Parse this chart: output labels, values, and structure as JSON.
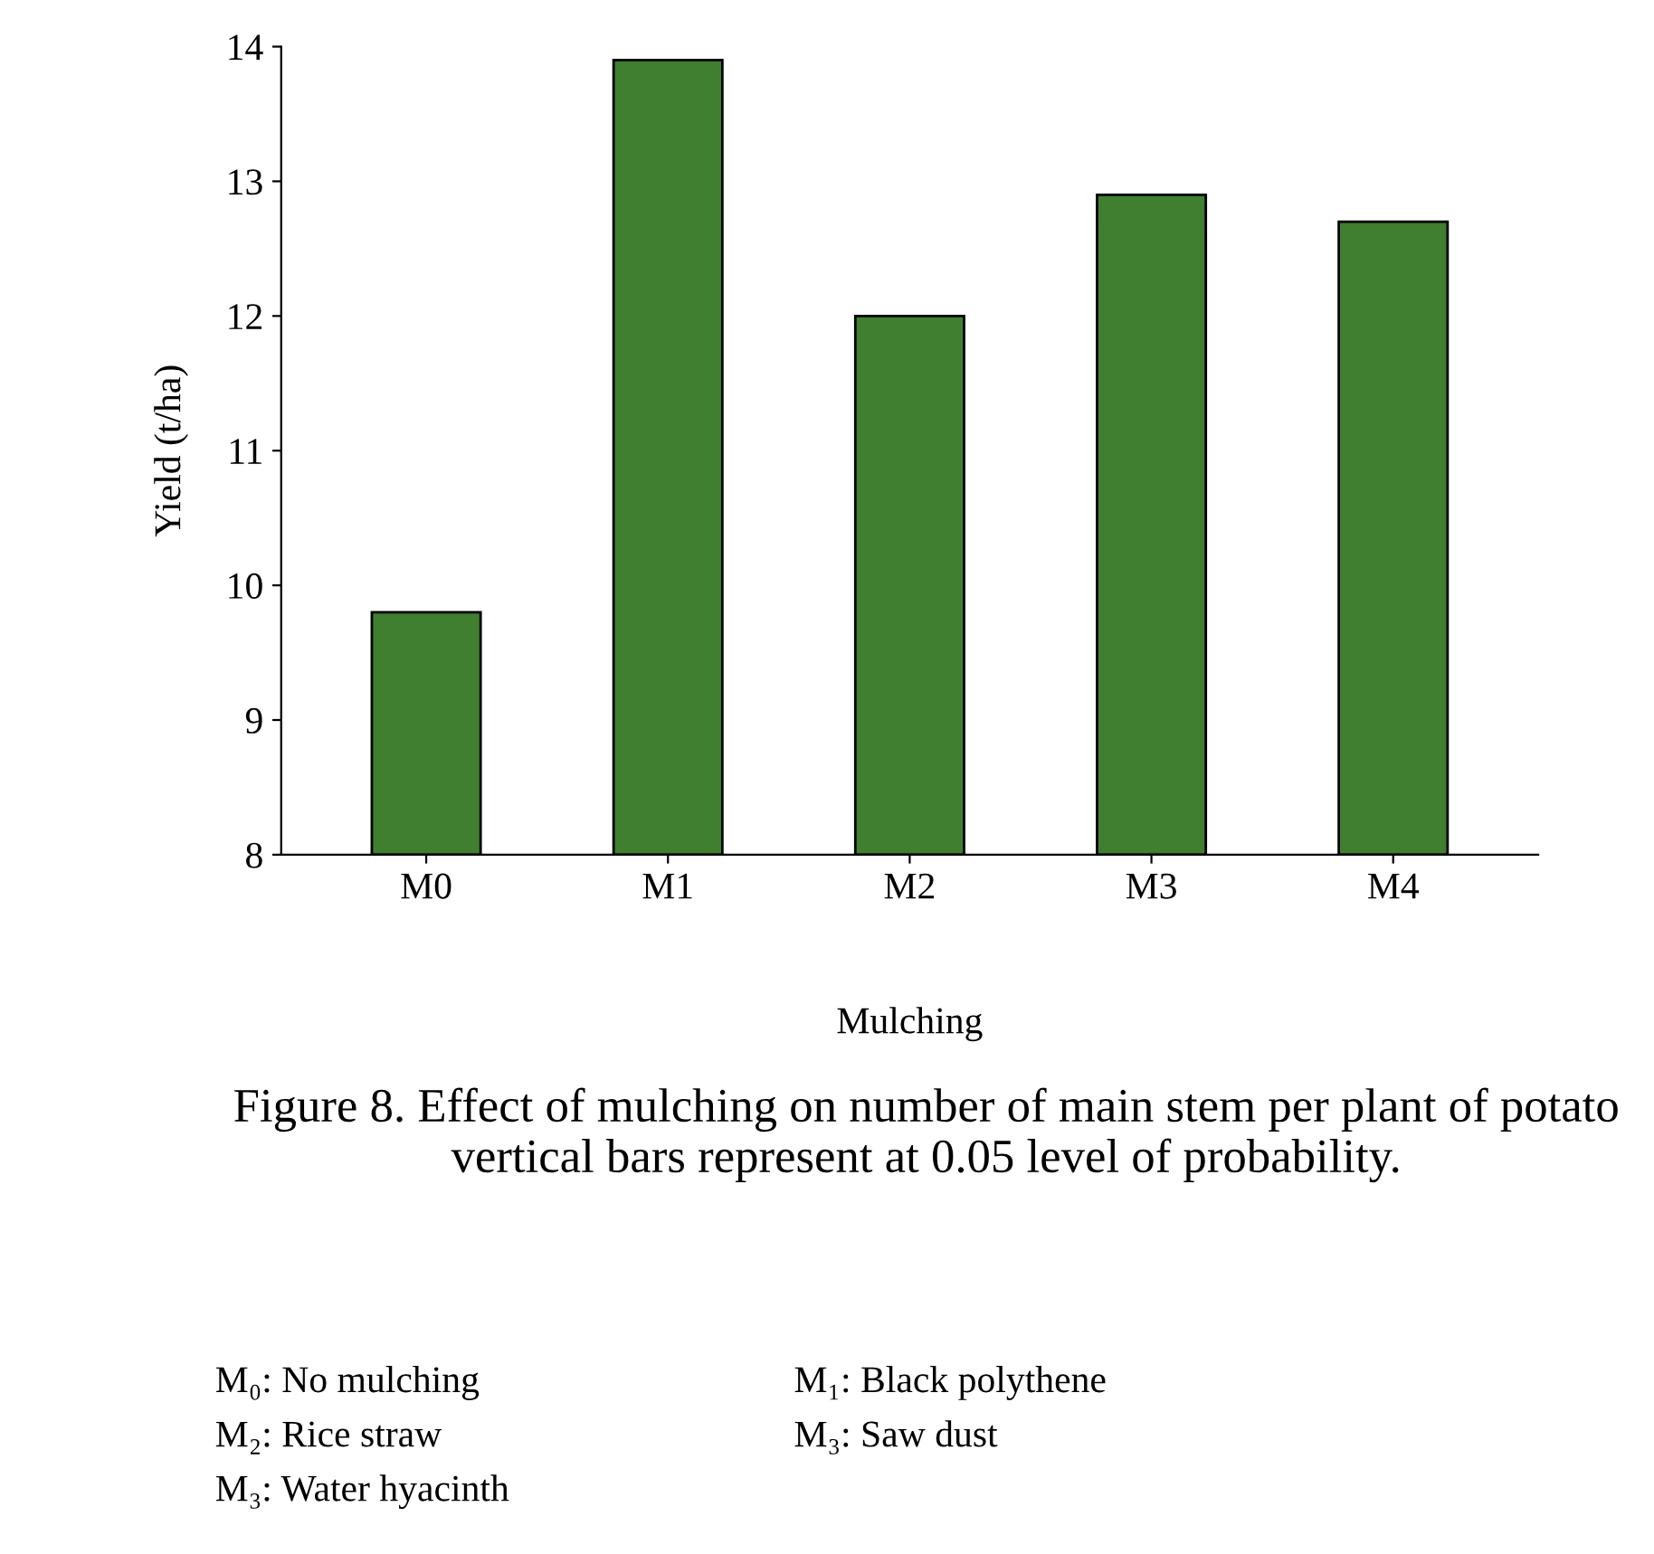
{
  "chart_data": {
    "type": "bar",
    "xlabel": "Mulching",
    "ylabel": "Yield (t/ha)",
    "categories": [
      "M0",
      "M1",
      "M2",
      "M3",
      "M4"
    ],
    "values": [
      9.8,
      13.9,
      12.0,
      12.9,
      12.7
    ],
    "color": "#3f7f2f",
    "ylim": [
      8,
      14
    ],
    "yticks": [
      8,
      9,
      10,
      11,
      12,
      13,
      14
    ],
    "grid": false,
    "legend": false,
    "annotations": [
      "Figure 8. Effect of mulching on number of main stem per plant of potato vertical bars represent at 0.05 level of probability.",
      "M₀: No mulching",
      "M₁: Black polythene",
      "M₂: Rice straw",
      "M₃: Saw dust",
      "M₃: Water hyacinth"
    ]
  }
}
